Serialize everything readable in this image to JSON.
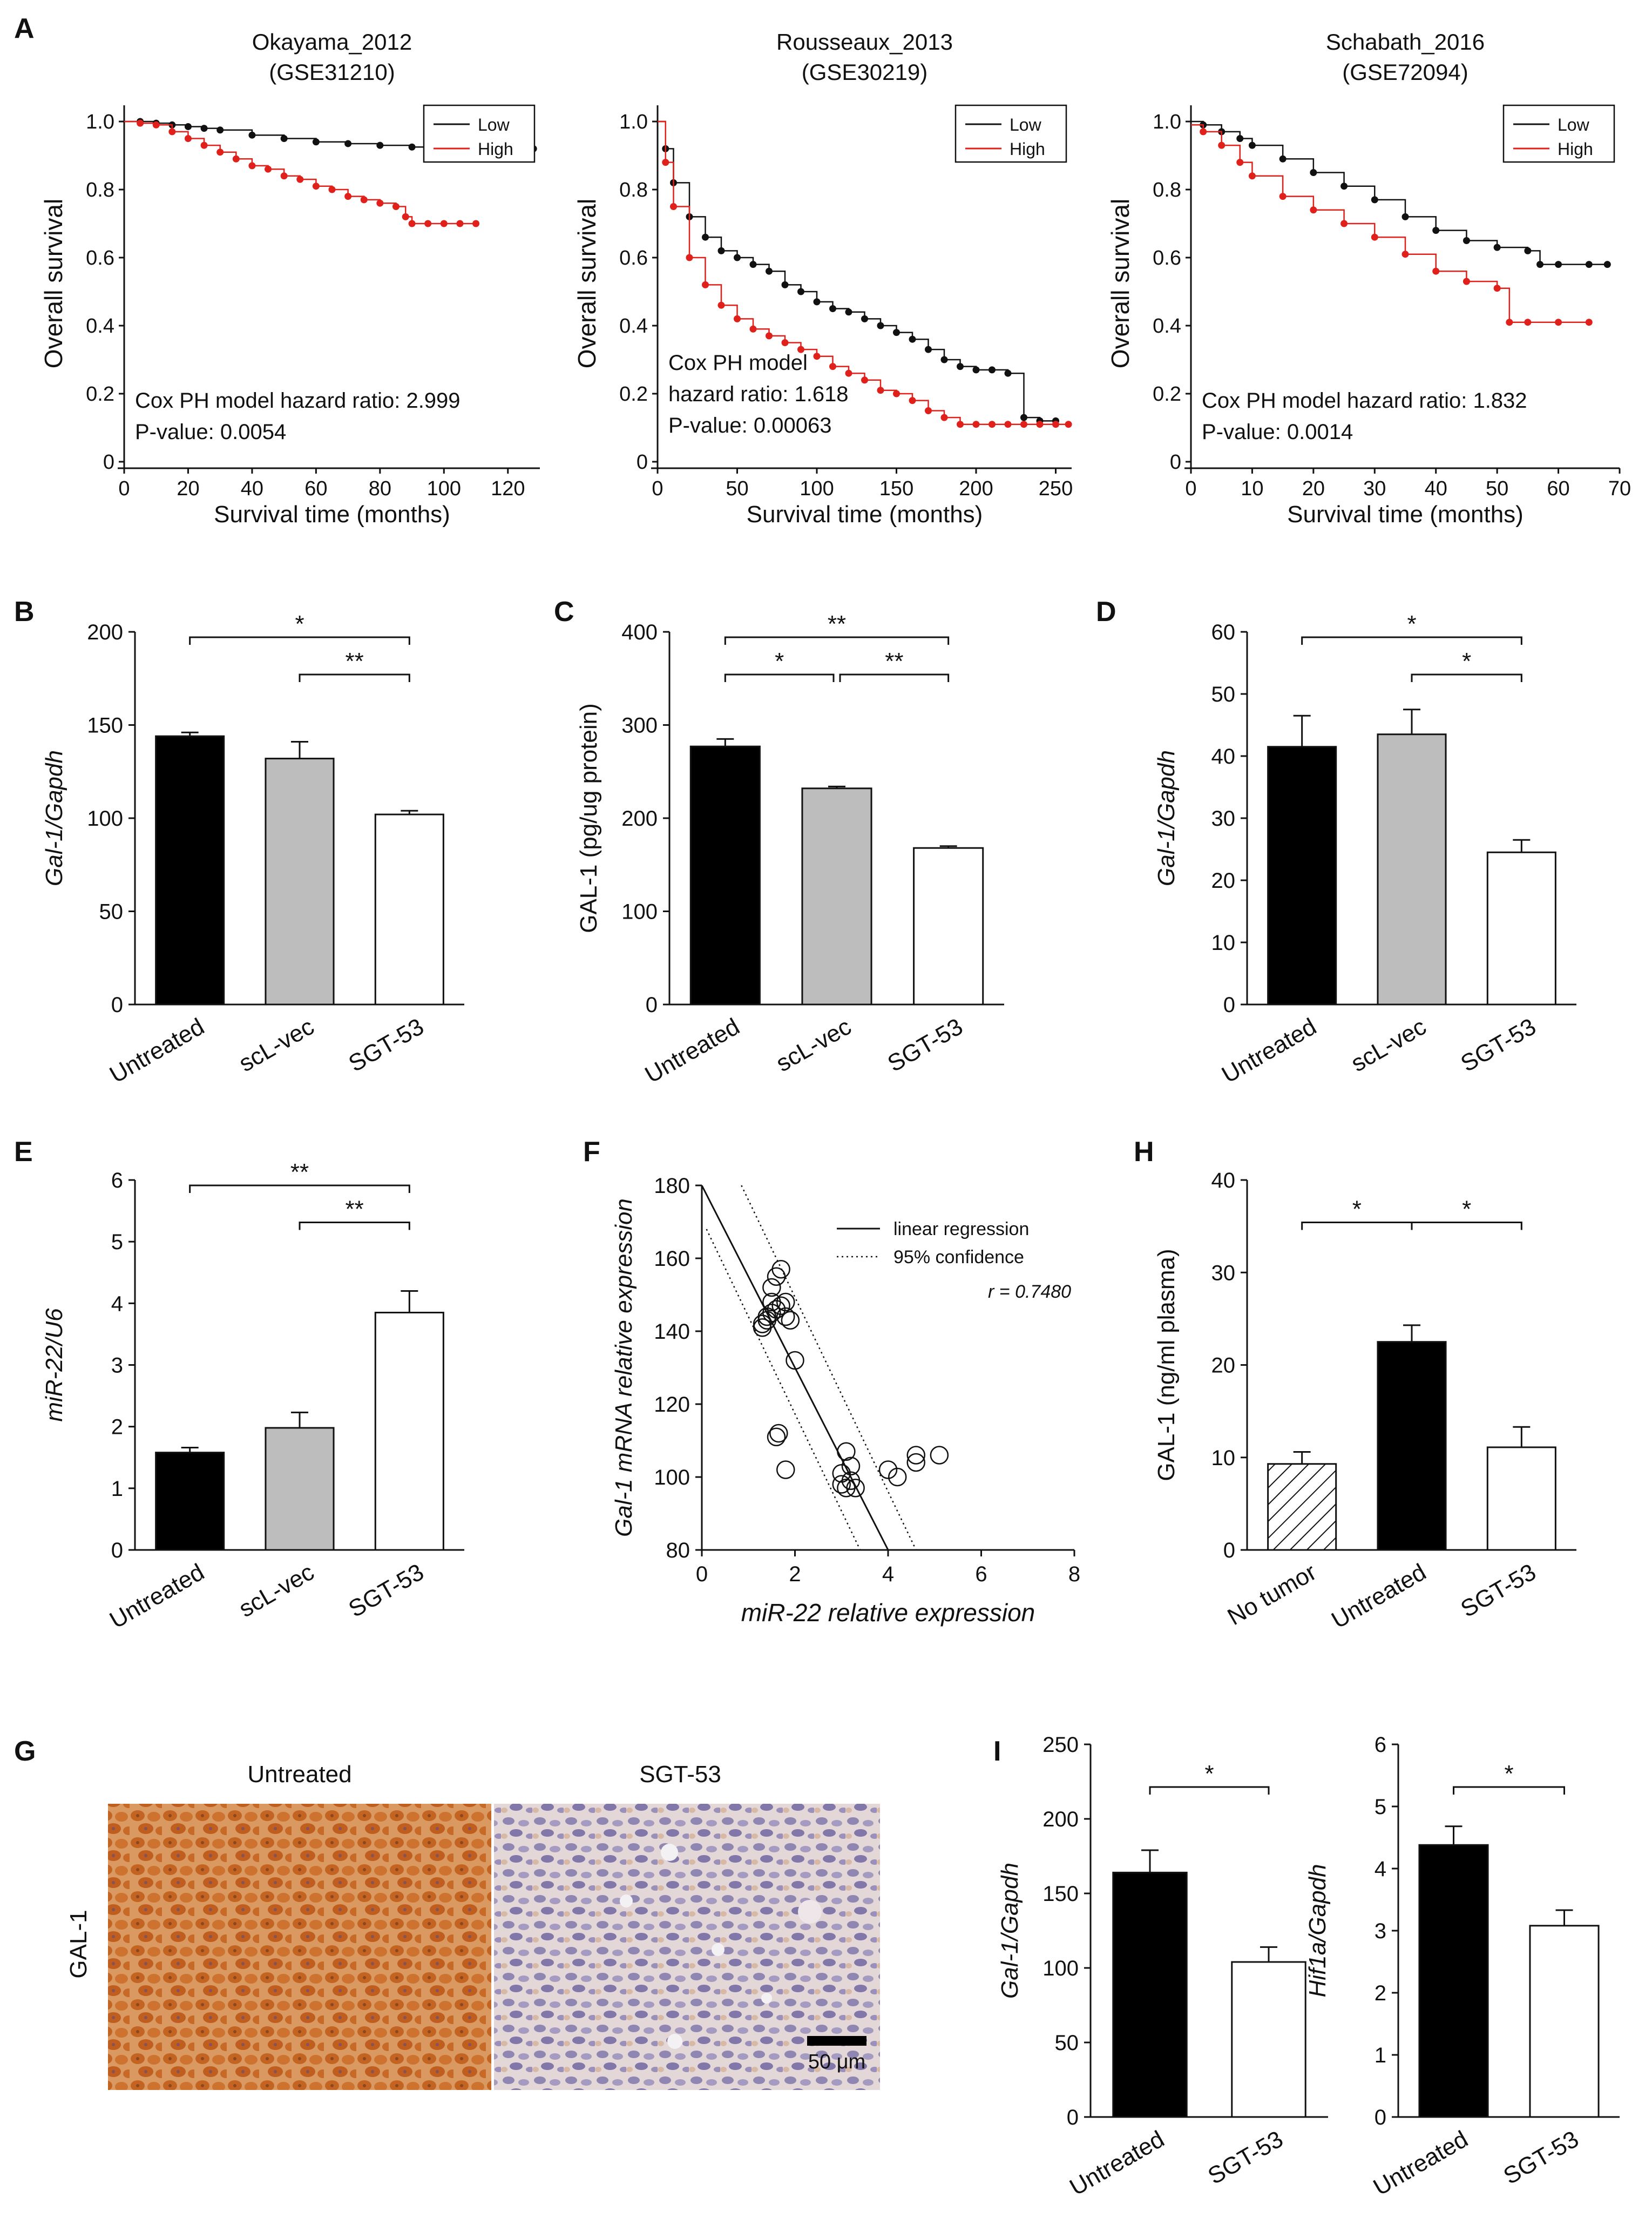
{
  "panel_letters": [
    "A",
    "B",
    "C",
    "D",
    "E",
    "F",
    "G",
    "H",
    "I"
  ],
  "colors": {
    "low": "#111111",
    "high": "#e0201b",
    "black_bar": "#000000",
    "gray_bar": "#bdbdbd",
    "white_bar": "#ffffff"
  },
  "chart_data": [
    {
      "id": "A1",
      "type": "line",
      "title": "Okayama_2012",
      "subtitle": "(GSE31210)",
      "xlabel": "Survival time (months)",
      "ylabel": "Overall survival",
      "xlim": [
        0,
        130
      ],
      "ylim": [
        0,
        1.0
      ],
      "xticks": [
        0,
        20,
        40,
        60,
        80,
        100,
        120
      ],
      "yticks": [
        0,
        0.2,
        0.4,
        0.6,
        0.8,
        1.0
      ],
      "ytick_labels": [
        "0",
        "0.2",
        "0.4",
        "0.6",
        "0.8",
        "1.0"
      ],
      "legend": [
        "Low",
        "High"
      ],
      "legend_position": "top-right",
      "annotation": [
        "Cox PH model hazard ratio: 2.999",
        "P-value: 0.0054"
      ],
      "series": [
        {
          "name": "Low",
          "x": [
            0,
            5,
            10,
            15,
            20,
            25,
            30,
            40,
            50,
            60,
            70,
            80,
            90,
            100,
            110,
            120,
            128
          ],
          "y": [
            1.0,
            1.0,
            0.995,
            0.99,
            0.985,
            0.98,
            0.975,
            0.96,
            0.95,
            0.94,
            0.935,
            0.93,
            0.925,
            0.92,
            0.92,
            0.92,
            0.92
          ]
        },
        {
          "name": "High",
          "x": [
            0,
            5,
            10,
            15,
            20,
            25,
            30,
            35,
            40,
            45,
            50,
            55,
            60,
            65,
            70,
            75,
            80,
            85,
            88,
            90,
            95,
            100,
            105,
            110
          ],
          "y": [
            1.0,
            0.995,
            0.99,
            0.97,
            0.95,
            0.93,
            0.91,
            0.89,
            0.87,
            0.86,
            0.84,
            0.83,
            0.81,
            0.8,
            0.78,
            0.77,
            0.76,
            0.75,
            0.72,
            0.7,
            0.7,
            0.7,
            0.7,
            0.7
          ]
        }
      ]
    },
    {
      "id": "A2",
      "type": "line",
      "title": "Rousseaux_2013",
      "subtitle": "(GSE30219)",
      "xlabel": "Survival time (months)",
      "ylabel": "Overall survival",
      "xlim": [
        0,
        260
      ],
      "ylim": [
        0,
        1.0
      ],
      "xticks": [
        0,
        50,
        100,
        150,
        200,
        250
      ],
      "yticks": [
        0,
        0.2,
        0.4,
        0.6,
        0.8,
        1.0
      ],
      "ytick_labels": [
        "0",
        "0.2",
        "0.4",
        "0.6",
        "0.8",
        "1.0"
      ],
      "legend": [
        "Low",
        "High"
      ],
      "legend_position": "top-right",
      "annotation": [
        "Cox PH model",
        "hazard ratio: 1.618",
        "P-value: 0.00063"
      ],
      "series": [
        {
          "name": "Low",
          "x": [
            0,
            5,
            10,
            20,
            30,
            40,
            50,
            60,
            70,
            80,
            90,
            100,
            110,
            120,
            130,
            140,
            150,
            160,
            170,
            180,
            190,
            200,
            210,
            220,
            230,
            240,
            250
          ],
          "y": [
            1.0,
            0.92,
            0.82,
            0.72,
            0.66,
            0.62,
            0.6,
            0.58,
            0.56,
            0.52,
            0.5,
            0.47,
            0.45,
            0.44,
            0.42,
            0.4,
            0.38,
            0.36,
            0.33,
            0.3,
            0.28,
            0.27,
            0.27,
            0.26,
            0.13,
            0.12,
            0.12
          ]
        },
        {
          "name": "High",
          "x": [
            0,
            5,
            10,
            20,
            30,
            40,
            50,
            60,
            70,
            80,
            90,
            100,
            110,
            120,
            130,
            140,
            150,
            160,
            170,
            180,
            190,
            200,
            210,
            220,
            230,
            240,
            250,
            258
          ],
          "y": [
            1.0,
            0.88,
            0.75,
            0.6,
            0.52,
            0.46,
            0.42,
            0.39,
            0.37,
            0.35,
            0.33,
            0.31,
            0.28,
            0.26,
            0.24,
            0.21,
            0.2,
            0.18,
            0.15,
            0.13,
            0.11,
            0.11,
            0.11,
            0.11,
            0.11,
            0.11,
            0.11,
            0.11
          ]
        }
      ]
    },
    {
      "id": "A3",
      "type": "line",
      "title": "Schabath_2016",
      "subtitle": "(GSE72094)",
      "xlabel": "Survival time (months)",
      "ylabel": "Overall survival",
      "xlim": [
        0,
        70
      ],
      "ylim": [
        0,
        1.0
      ],
      "xticks": [
        0,
        10,
        20,
        30,
        40,
        50,
        60,
        70
      ],
      "yticks": [
        0,
        0.2,
        0.4,
        0.6,
        0.8,
        1.0
      ],
      "ytick_labels": [
        "0",
        "0.2",
        "0.4",
        "0.6",
        "0.8",
        "1.0"
      ],
      "legend": [
        "Low",
        "High"
      ],
      "legend_position": "top-right",
      "annotation": [
        "Cox PH model hazard ratio: 1.832",
        "P-value: 0.0014"
      ],
      "series": [
        {
          "name": "Low",
          "x": [
            0,
            2,
            5,
            8,
            10,
            15,
            20,
            25,
            30,
            35,
            40,
            45,
            50,
            55,
            57,
            60,
            65,
            68
          ],
          "y": [
            1.0,
            0.99,
            0.97,
            0.95,
            0.93,
            0.89,
            0.85,
            0.81,
            0.77,
            0.72,
            0.68,
            0.65,
            0.63,
            0.62,
            0.58,
            0.58,
            0.58,
            0.58
          ]
        },
        {
          "name": "High",
          "x": [
            0,
            2,
            5,
            8,
            10,
            15,
            20,
            25,
            30,
            35,
            40,
            45,
            50,
            52,
            55,
            60,
            65
          ],
          "y": [
            0.99,
            0.97,
            0.93,
            0.88,
            0.84,
            0.78,
            0.74,
            0.7,
            0.66,
            0.61,
            0.56,
            0.53,
            0.51,
            0.41,
            0.41,
            0.41,
            0.41
          ]
        }
      ]
    },
    {
      "id": "B",
      "type": "bar",
      "ylabel": "Gal-1/Gapdh",
      "ylim": [
        0,
        200
      ],
      "yticks": [
        0,
        50,
        100,
        150,
        200
      ],
      "categories": [
        "Untreated",
        "scL-vec",
        "SGT-53"
      ],
      "values": [
        144,
        132,
        102
      ],
      "errors": [
        2,
        9,
        2
      ],
      "fills": [
        "black",
        "gray",
        "white"
      ],
      "sig": [
        {
          "from": 0,
          "to": 2,
          "label": "*",
          "level": 1
        },
        {
          "from": 1,
          "to": 2,
          "label": "**",
          "level": 0
        }
      ]
    },
    {
      "id": "C",
      "type": "bar",
      "ylabel": "GAL-1 (pg/ug protein)",
      "ylim": [
        0,
        400
      ],
      "yticks": [
        0,
        100,
        200,
        300,
        400
      ],
      "categories": [
        "Untreated",
        "scL-vec",
        "SGT-53"
      ],
      "values": [
        277,
        232,
        168
      ],
      "errors": [
        8,
        2,
        2
      ],
      "fills": [
        "black",
        "gray",
        "white"
      ],
      "sig": [
        {
          "from": 0,
          "to": 2,
          "label": "**",
          "level": 1
        },
        {
          "from": 0,
          "to": 1,
          "label": "*",
          "level": 0
        },
        {
          "from": 1,
          "to": 2,
          "label": "**",
          "level": 0
        }
      ]
    },
    {
      "id": "D",
      "type": "bar",
      "ylabel": "Gal-1/Gapdh",
      "ylim": [
        0,
        60
      ],
      "yticks": [
        0,
        10,
        20,
        30,
        40,
        50,
        60
      ],
      "categories": [
        "Untreated",
        "scL-vec",
        "SGT-53"
      ],
      "values": [
        41.5,
        43.5,
        24.5
      ],
      "errors": [
        5,
        4,
        2
      ],
      "fills": [
        "black",
        "gray",
        "white"
      ],
      "sig": [
        {
          "from": 0,
          "to": 2,
          "label": "*",
          "level": 1
        },
        {
          "from": 1,
          "to": 2,
          "label": "*",
          "level": 0
        }
      ]
    },
    {
      "id": "E",
      "type": "bar",
      "ylabel": "miR-22/U6",
      "ylim": [
        0,
        6
      ],
      "yticks": [
        0,
        1,
        2,
        3,
        4,
        5,
        6
      ],
      "categories": [
        "Untreated",
        "scL-vec",
        "SGT-53"
      ],
      "values": [
        1.58,
        1.98,
        3.85
      ],
      "errors": [
        0.08,
        0.25,
        0.35
      ],
      "fills": [
        "black",
        "gray",
        "white"
      ],
      "sig": [
        {
          "from": 0,
          "to": 2,
          "label": "**",
          "level": 1
        },
        {
          "from": 1,
          "to": 2,
          "label": "**",
          "level": 0
        }
      ]
    },
    {
      "id": "F",
      "type": "scatter",
      "xlabel": "miR-22 relative expression",
      "ylabel": "Gal-1 mRNA relative expression",
      "xlim": [
        0,
        8
      ],
      "ylim": [
        80,
        180
      ],
      "xticks": [
        0,
        2,
        4,
        6,
        8
      ],
      "yticks": [
        80,
        100,
        120,
        140,
        160,
        180
      ],
      "legend": [
        "linear regression",
        "95% confidence"
      ],
      "annotation": "r = 0.7480",
      "x": [
        1.3,
        1.4,
        1.5,
        1.6,
        1.5,
        1.3,
        1.4,
        1.7,
        1.8,
        1.5,
        1.9,
        1.6,
        1.7,
        1.8,
        2.0,
        1.6,
        1.65,
        1.8,
        3.0,
        3.1,
        3.2,
        3.1,
        3.3,
        3.0,
        3.2,
        4.0,
        4.2,
        4.6,
        4.6,
        5.1
      ],
      "y": [
        142,
        143,
        145,
        146,
        148,
        141,
        144,
        147,
        144,
        152,
        143,
        155,
        157,
        148,
        132,
        111,
        112,
        102,
        98,
        97,
        99,
        107,
        97,
        101,
        103,
        102,
        100,
        104,
        106,
        106
      ],
      "regression": {
        "x": [
          0,
          4
        ],
        "y": [
          180,
          80
        ]
      },
      "ci_upper": {
        "x": [
          0.85,
          4.6
        ],
        "y": [
          180,
          80
        ]
      },
      "ci_lower": {
        "x": [
          0.1,
          3.4
        ],
        "y": [
          168,
          80
        ]
      }
    },
    {
      "id": "H",
      "type": "bar",
      "ylabel": "GAL-1 (ng/ml plasma)",
      "ylim": [
        0,
        40
      ],
      "yticks": [
        0,
        10,
        20,
        30,
        40
      ],
      "categories": [
        "No tumor",
        "Untreated",
        "SGT-53"
      ],
      "values": [
        9.3,
        22.5,
        11.1
      ],
      "errors": [
        1.3,
        1.8,
        2.2
      ],
      "fills": [
        "hatch",
        "black",
        "white"
      ],
      "sig": [
        {
          "from": 0,
          "to": 1,
          "label": "*",
          "level": 0
        },
        {
          "from": 1,
          "to": 2,
          "label": "*",
          "level": 0
        }
      ]
    },
    {
      "id": "I1",
      "type": "bar",
      "ylabel": "Gal-1/Gapdh",
      "ylim": [
        0,
        250
      ],
      "yticks": [
        0,
        50,
        100,
        150,
        200,
        250
      ],
      "categories": [
        "Untreated",
        "SGT-53"
      ],
      "values": [
        164,
        104
      ],
      "errors": [
        15,
        10
      ],
      "fills": [
        "black",
        "white"
      ],
      "sig": [
        {
          "from": 0,
          "to": 1,
          "label": "*",
          "level": 0
        }
      ]
    },
    {
      "id": "I2",
      "type": "bar",
      "ylabel": "Hif1a/Gapdh",
      "ylim": [
        0,
        6
      ],
      "yticks": [
        0,
        1,
        2,
        3,
        4,
        5,
        6
      ],
      "categories": [
        "Untreated",
        "SGT-53"
      ],
      "values": [
        4.38,
        3.08
      ],
      "errors": [
        0.3,
        0.25
      ],
      "fills": [
        "black",
        "white"
      ],
      "sig": [
        {
          "from": 0,
          "to": 1,
          "label": "*",
          "level": 0
        }
      ]
    }
  ],
  "panel_g": {
    "label_untreated": "Untreated",
    "label_sgt53": "SGT-53",
    "row_label": "GAL-1",
    "scale_bar": "50 μm"
  }
}
